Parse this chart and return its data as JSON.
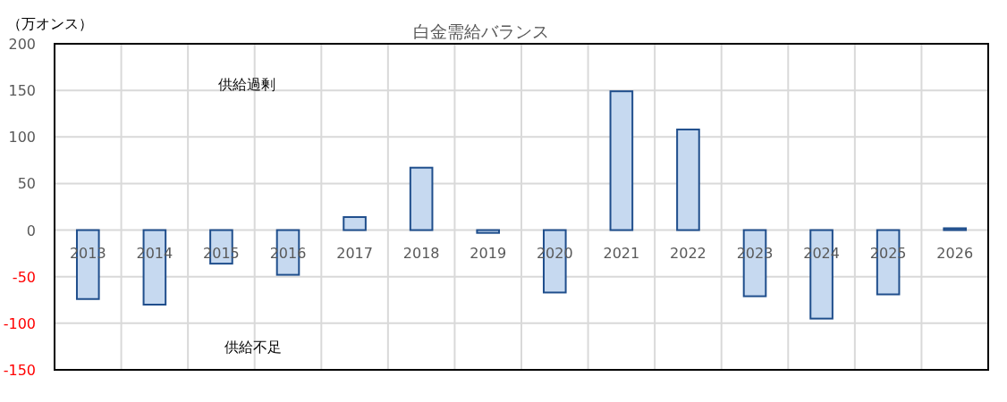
{
  "chart_data": {
    "type": "bar",
    "title": "白金需給バランス",
    "ylabel": "（万オンス）",
    "annotations": [
      "供給過剰",
      "供給不足"
    ],
    "categories": [
      "2013",
      "2014",
      "2015",
      "2016",
      "2017",
      "2018",
      "2019",
      "2020",
      "2021",
      "2022",
      "2023",
      "2024",
      "2025",
      "2026"
    ],
    "series": [
      {
        "color": "#c6d9f0",
        "values": [
          -74,
          -80,
          -36,
          -48,
          14,
          67,
          -3,
          -67,
          149,
          108,
          -71,
          -95,
          -69,
          2
        ]
      }
    ],
    "ylim": [
      -150,
      200
    ],
    "yticks": [
      -150,
      -100,
      -50,
      0,
      50,
      100,
      150,
      200
    ],
    "grid": true
  }
}
